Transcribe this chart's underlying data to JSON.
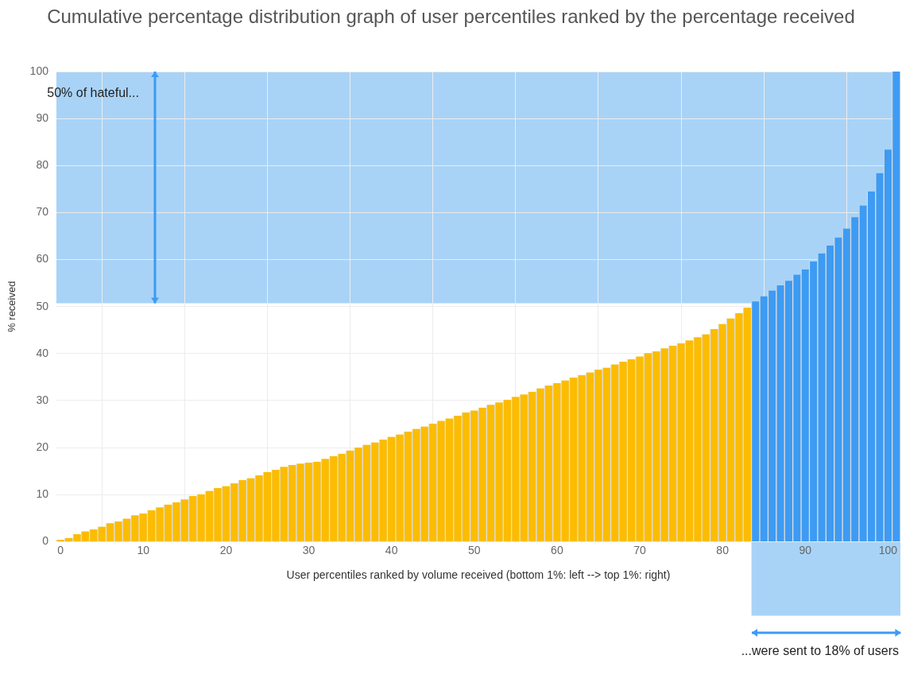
{
  "chart_data": {
    "type": "bar",
    "title": "Cumulative percentage distribution graph of user percentiles ranked by the percentage received",
    "xlabel": "User percentiles ranked by volume received (bottom 1%: left --> top 1%: right)",
    "ylabel": "% received",
    "series": [
      {
        "color": "#fcbc00",
        "x": [
          0,
          1,
          2,
          3,
          4,
          5,
          6,
          7,
          8,
          9,
          10,
          11,
          12,
          13,
          14,
          15,
          16,
          17,
          18,
          19,
          20,
          21,
          22,
          23,
          24,
          25,
          26,
          27,
          28,
          29,
          30,
          31,
          32,
          33,
          34,
          35,
          36,
          37,
          38,
          39,
          40,
          41,
          42,
          43,
          44,
          45,
          46,
          47,
          48,
          49,
          50,
          51,
          52,
          53,
          54,
          55,
          56,
          57,
          58,
          59,
          60,
          61,
          62,
          63,
          64,
          65,
          66,
          67,
          68,
          69,
          70,
          71,
          72,
          73,
          74,
          75,
          76,
          77,
          78,
          79,
          80,
          81,
          82,
          83
        ],
        "values": [
          0.4,
          0.8,
          1.6,
          2.2,
          2.6,
          3.2,
          3.9,
          4.3,
          4.9,
          5.6,
          6.0,
          6.7,
          7.3,
          7.9,
          8.4,
          9.0,
          9.7,
          10.1,
          10.8,
          11.4,
          11.8,
          12.4,
          13.1,
          13.5,
          14.1,
          14.8,
          15.3,
          15.9,
          16.3,
          16.6,
          16.8,
          17.0,
          17.6,
          18.2,
          18.7,
          19.4,
          20.0,
          20.6,
          21.1,
          21.7,
          22.3,
          22.8,
          23.4,
          24.0,
          24.5,
          25.1,
          25.7,
          26.2,
          26.8,
          27.5,
          27.9,
          28.5,
          29.1,
          29.6,
          30.2,
          30.8,
          31.3,
          31.9,
          32.6,
          33.2,
          33.7,
          34.3,
          34.9,
          35.4,
          36.0,
          36.6,
          37.0,
          37.7,
          38.3,
          38.8,
          39.4,
          40.1,
          40.5,
          41.1,
          41.7,
          42.2,
          42.8,
          43.5,
          44.1,
          45.2,
          46.3,
          47.5,
          48.6,
          49.8
        ]
      },
      {
        "color": "#3d9bf3",
        "x": [
          84,
          85,
          86,
          87,
          88,
          89,
          90,
          91,
          92,
          93,
          94,
          95,
          96,
          97,
          98,
          99,
          100,
          101
        ],
        "values": [
          51.1,
          52.2,
          53.4,
          54.5,
          55.5,
          56.8,
          57.9,
          59.6,
          61.3,
          63.0,
          64.7,
          66.6,
          69.0,
          71.5,
          74.5,
          78.4,
          83.4,
          100
        ]
      }
    ],
    "xlim": [
      -0.5,
      101.5
    ],
    "xticks": [
      0,
      10,
      20,
      30,
      40,
      50,
      60,
      70,
      80,
      90,
      100
    ],
    "ylim": [
      0,
      100
    ],
    "yticks": [
      0,
      10,
      20,
      30,
      40,
      50,
      60,
      70,
      80,
      90,
      100
    ],
    "grid": true,
    "bands": [
      {
        "axis": "y",
        "from": 50.7,
        "to": 100,
        "color": "#a8d3f7"
      },
      {
        "axis": "x",
        "from": 83.5,
        "to": 101.5,
        "color": "#a8d3f7"
      }
    ],
    "annotations": [
      "50% of hateful...",
      "...were sent to 18% of users"
    ]
  }
}
